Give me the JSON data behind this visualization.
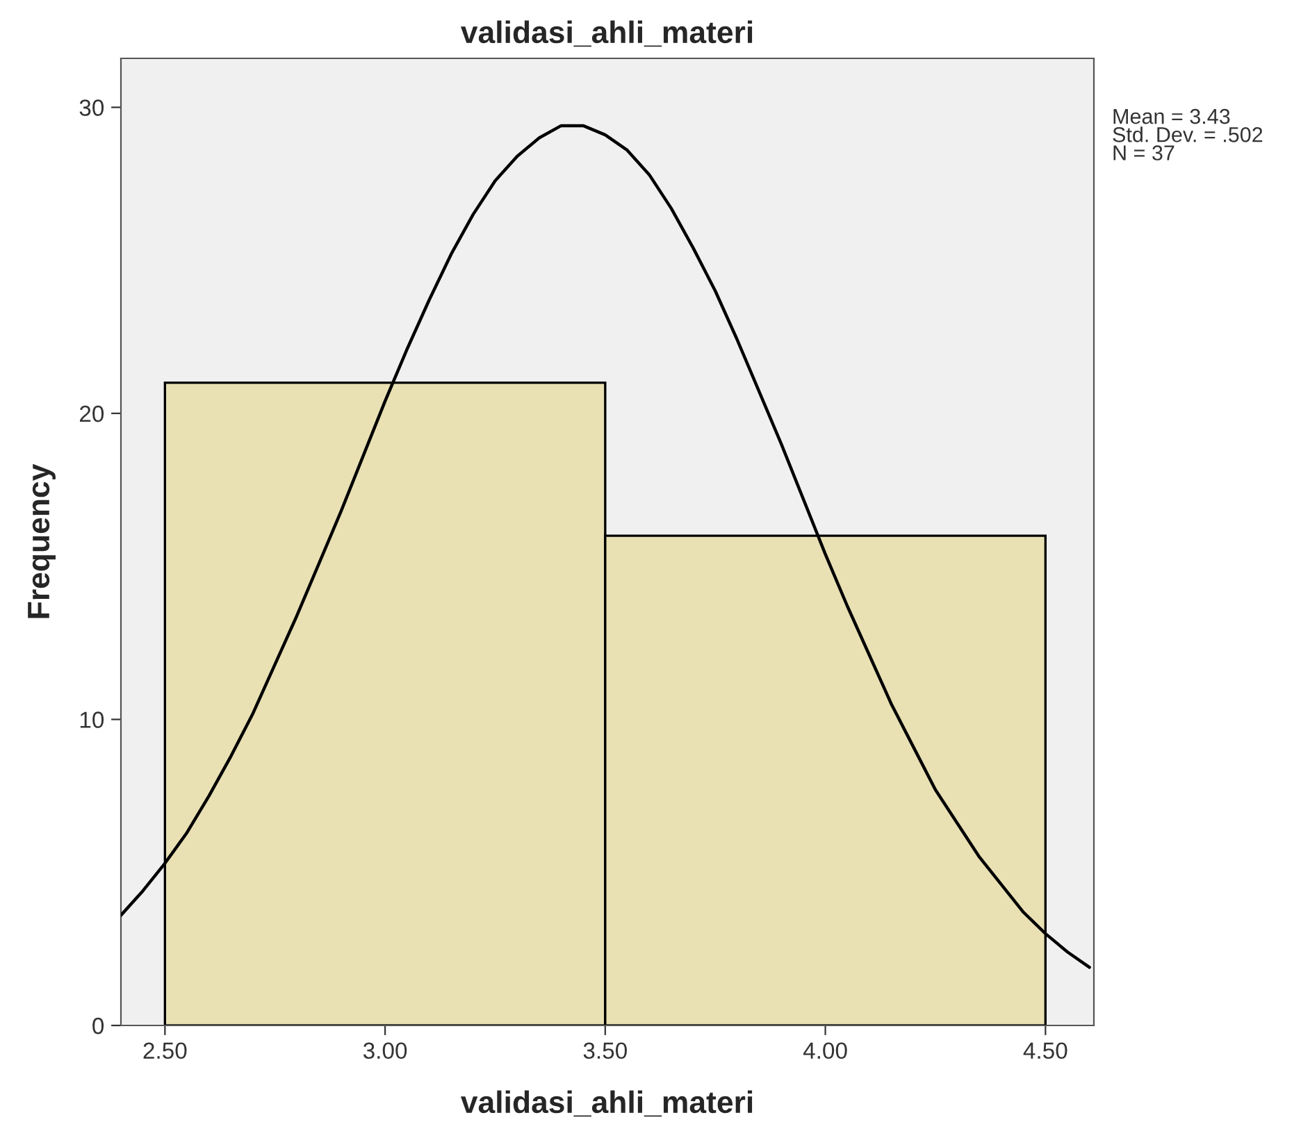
{
  "chart_data": {
    "type": "histogram",
    "title": "validasi_ahli_materi",
    "xlabel": "validasi_ahli_materi",
    "ylabel": "Frequency",
    "bins": [
      2.5,
      3.5,
      4.5
    ],
    "values": [
      21,
      16
    ],
    "color": "#e9e0b4",
    "series": [
      {
        "type": "line",
        "color": "#000000",
        "x": [
          2.4,
          2.45,
          2.5,
          2.55,
          2.6,
          2.65,
          2.7,
          2.75,
          2.8,
          2.85,
          2.9,
          2.95,
          3.0,
          3.05,
          3.1,
          3.15,
          3.2,
          3.25,
          3.3,
          3.35,
          3.4,
          3.43,
          3.45,
          3.5,
          3.55,
          3.6,
          3.65,
          3.7,
          3.75,
          3.8,
          3.85,
          3.9,
          3.95,
          4.0,
          4.05,
          4.1,
          4.15,
          4.2,
          4.25,
          4.3,
          4.35,
          4.4,
          4.45,
          4.5,
          4.55,
          4.6
        ],
        "values": [
          3.6,
          4.4,
          5.3,
          6.3,
          7.5,
          8.8,
          10.2,
          11.8,
          13.4,
          15.1,
          16.8,
          18.6,
          20.4,
          22.1,
          23.7,
          25.2,
          26.5,
          27.6,
          28.4,
          29.0,
          29.4,
          29.4,
          29.4,
          29.1,
          28.6,
          27.8,
          26.7,
          25.4,
          24.0,
          22.4,
          20.7,
          19.0,
          17.2,
          15.4,
          13.7,
          12.1,
          10.5,
          9.1,
          7.7,
          6.6,
          5.5,
          4.6,
          3.7,
          3.0,
          2.4,
          1.9
        ]
      }
    ],
    "xlim": [
      2.4,
      4.61
    ],
    "ylim": [
      0,
      31.6
    ],
    "xticks": [
      {
        "value": 2.5,
        "label": "2.50"
      },
      {
        "value": 3.0,
        "label": "3.00"
      },
      {
        "value": 3.5,
        "label": "3.50"
      },
      {
        "value": 4.0,
        "label": "4.00"
      },
      {
        "value": 4.5,
        "label": "4.50"
      }
    ],
    "yticks": [
      0,
      10,
      20,
      30
    ],
    "annotations": [
      "Mean = 3.43",
      "Std. Dev. = .502",
      "N = 37"
    ],
    "legend": false,
    "grid": false
  }
}
